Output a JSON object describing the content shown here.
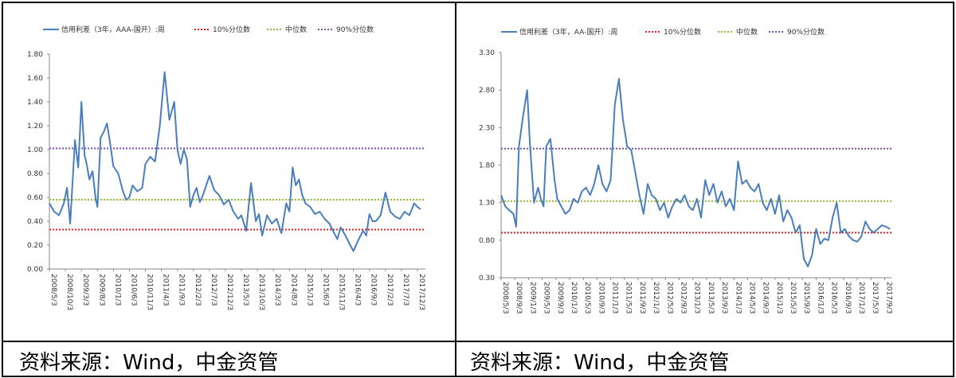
{
  "sources": [
    "资料来源：Wind，中金资管",
    "资料来源：Wind，中金资管"
  ],
  "colors": {
    "series": "#4a7ebb",
    "p10": "#e02020",
    "median": "#8fbf2f",
    "p90": "#7a4fb0"
  },
  "chart_data": [
    {
      "type": "line",
      "legend": [
        "信用利差（3年，AAA-国开）:周",
        "10%分位数",
        "中位数",
        "90%分位数"
      ],
      "legend_position": "top",
      "x_ticks": [
        "2008/5/3",
        "2008/10/3",
        "2009/3/3",
        "2009/8/3",
        "2010/1/3",
        "2010/6/3",
        "2010/11/3",
        "2011/4/3",
        "2011/9/3",
        "2012/2/3",
        "2012/7/3",
        "2012/12/3",
        "2013/5/3",
        "2013/10/3",
        "2014/3/3",
        "2014/8/3",
        "2015/1/3",
        "2015/6/3",
        "2015/11/3",
        "2016/4/3",
        "2016/9/3",
        "2017/2/3",
        "2017/7/3",
        "2017/12/3"
      ],
      "y_ticks": [
        "0.00",
        "0.20",
        "0.40",
        "0.60",
        "0.80",
        "1.00",
        "1.20",
        "1.40",
        "1.60",
        "1.80"
      ],
      "ylim": [
        0,
        1.8
      ],
      "grid": false,
      "reference_lines": {
        "p10": 0.33,
        "median": 0.58,
        "p90": 1.01
      },
      "series": [
        {
          "name": "信用利差（3年，AAA-国开）:周",
          "x": [
            0,
            0.3,
            0.6,
            0.9,
            1.1,
            1.3,
            1.6,
            1.8,
            2.0,
            2.2,
            2.3,
            2.5,
            2.7,
            2.9,
            3.0,
            3.2,
            3.4,
            3.6,
            3.8,
            4.0,
            4.3,
            4.6,
            4.8,
            5.0,
            5.2,
            5.5,
            5.8,
            6.0,
            6.3,
            6.6,
            6.9,
            7.2,
            7.5,
            7.8,
            8.0,
            8.2,
            8.4,
            8.6,
            8.8,
            9.0,
            9.2,
            9.4,
            9.6,
            9.8,
            10.0,
            10.3,
            10.6,
            10.9,
            11.2,
            11.5,
            11.8,
            12.0,
            12.3,
            12.6,
            12.9,
            13.1,
            13.3,
            13.6,
            13.9,
            14.2,
            14.5,
            14.8,
            15.0,
            15.2,
            15.4,
            15.6,
            15.8,
            16.0,
            16.3,
            16.6,
            16.9,
            17.2,
            17.5,
            17.8,
            18.0,
            18.2,
            18.5,
            18.8,
            19.0,
            19.3,
            19.6,
            19.8,
            20.0,
            20.2,
            20.4,
            20.7,
            21.0,
            21.3,
            21.6,
            21.9,
            22.2,
            22.5,
            22.8,
            23.0,
            23.2
          ],
          "values": [
            0.55,
            0.48,
            0.45,
            0.55,
            0.68,
            0.38,
            1.08,
            0.85,
            1.4,
            0.95,
            0.9,
            0.75,
            0.82,
            0.58,
            0.52,
            1.1,
            1.15,
            1.22,
            1.05,
            0.86,
            0.8,
            0.65,
            0.58,
            0.6,
            0.7,
            0.65,
            0.68,
            0.88,
            0.94,
            0.9,
            1.2,
            1.65,
            1.25,
            1.4,
            1.0,
            0.88,
            1.0,
            0.92,
            0.52,
            0.62,
            0.68,
            0.56,
            0.62,
            0.7,
            0.78,
            0.66,
            0.62,
            0.54,
            0.58,
            0.48,
            0.42,
            0.45,
            0.32,
            0.72,
            0.4,
            0.46,
            0.28,
            0.45,
            0.38,
            0.42,
            0.3,
            0.55,
            0.48,
            0.85,
            0.7,
            0.75,
            0.62,
            0.55,
            0.52,
            0.46,
            0.48,
            0.42,
            0.38,
            0.3,
            0.25,
            0.35,
            0.28,
            0.2,
            0.15,
            0.24,
            0.32,
            0.28,
            0.46,
            0.4,
            0.4,
            0.45,
            0.64,
            0.48,
            0.44,
            0.42,
            0.48,
            0.45,
            0.55,
            0.52,
            0.5
          ]
        }
      ]
    },
    {
      "type": "line",
      "legend": [
        "信用利差（3年，AA-国开）:周",
        "10%分位数",
        "中位数",
        "90%分位数"
      ],
      "legend_position": "top",
      "x_ticks": [
        "2008/5/3",
        "2008/9/3",
        "2009/1/3",
        "2009/5/3",
        "2009/9/3",
        "2010/1/3",
        "2010/5/3",
        "2010/9/3",
        "2011/1/3",
        "2011/5/3",
        "2011/9/3",
        "2012/1/3",
        "2012/5/3",
        "2012/9/3",
        "2013/1/3",
        "2013/5/3",
        "2013/9/3",
        "2014/1/3",
        "2014/5/3",
        "2014/9/3",
        "2015/1/3",
        "2015/5/3",
        "2015/9/3",
        "2016/1/3",
        "2016/5/3",
        "2016/9/3",
        "2017/1/3",
        "2017/5/3",
        "2017/9/3"
      ],
      "y_ticks": [
        "0.30",
        "0.80",
        "1.30",
        "1.80",
        "2.30",
        "2.80",
        "3.30"
      ],
      "ylim": [
        0.3,
        3.3
      ],
      "grid": false,
      "reference_lines": {
        "p10": 0.9,
        "median": 1.32,
        "p90": 2.02
      },
      "series": [
        {
          "name": "信用利差（3年，AA-国开）:周",
          "x": [
            0,
            0.3,
            0.6,
            0.9,
            1.1,
            1.3,
            1.6,
            1.9,
            2.1,
            2.4,
            2.7,
            2.9,
            3.1,
            3.3,
            3.6,
            3.9,
            4.1,
            4.4,
            4.7,
            5.0,
            5.3,
            5.6,
            5.9,
            6.2,
            6.5,
            6.8,
            7.1,
            7.4,
            7.7,
            8.0,
            8.3,
            8.6,
            8.9,
            9.2,
            9.5,
            9.8,
            10.1,
            10.4,
            10.7,
            11.0,
            11.3,
            11.6,
            11.9,
            12.2,
            12.5,
            12.8,
            13.1,
            13.4,
            13.7,
            14.0,
            14.3,
            14.6,
            14.9,
            15.2,
            15.5,
            15.8,
            16.1,
            16.4,
            16.7,
            17.0,
            17.3,
            17.6,
            17.9,
            18.2,
            18.5,
            18.8,
            19.1,
            19.4,
            19.7,
            20.0,
            20.3,
            20.6,
            20.9,
            21.2,
            21.5,
            21.8,
            22.1,
            22.4,
            22.7,
            23.0,
            23.3,
            23.6,
            23.9,
            24.2,
            24.5,
            24.8,
            25.1,
            25.4,
            25.7,
            26.0,
            26.3,
            26.6,
            26.9,
            27.2,
            27.5,
            27.8,
            28.1,
            28.4
          ],
          "values": [
            1.4,
            1.25,
            1.2,
            1.15,
            0.98,
            2.05,
            2.45,
            2.8,
            2.1,
            1.3,
            1.5,
            1.35,
            1.25,
            2.05,
            2.15,
            1.6,
            1.35,
            1.25,
            1.15,
            1.2,
            1.35,
            1.3,
            1.45,
            1.5,
            1.4,
            1.55,
            1.8,
            1.55,
            1.45,
            1.6,
            2.6,
            2.95,
            2.4,
            2.05,
            2.0,
            1.7,
            1.4,
            1.15,
            1.55,
            1.4,
            1.35,
            1.2,
            1.3,
            1.1,
            1.25,
            1.35,
            1.3,
            1.4,
            1.25,
            1.2,
            1.35,
            1.1,
            1.6,
            1.4,
            1.55,
            1.3,
            1.45,
            1.25,
            1.35,
            1.2,
            1.85,
            1.55,
            1.6,
            1.5,
            1.45,
            1.55,
            1.3,
            1.2,
            1.35,
            1.15,
            1.4,
            1.05,
            1.2,
            1.1,
            0.9,
            1.0,
            0.55,
            0.45,
            0.6,
            0.95,
            0.75,
            0.82,
            0.8,
            1.1,
            1.3,
            0.9,
            0.95,
            0.85,
            0.8,
            0.78,
            0.85,
            1.05,
            0.95,
            0.9,
            0.95,
            1.0,
            0.98,
            0.95
          ]
        }
      ]
    }
  ]
}
